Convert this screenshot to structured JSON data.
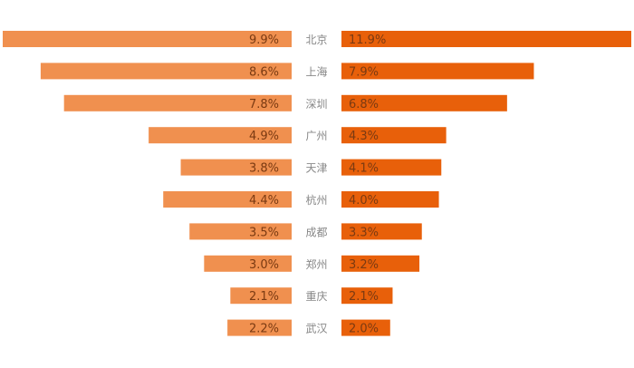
{
  "chart_data": {
    "type": "bar",
    "orientation": "horizontal-butterfly",
    "categories": [
      "北京",
      "上海",
      "深圳",
      "广州",
      "天津",
      "杭州",
      "成都",
      "郑州",
      "重庆",
      "武汉"
    ],
    "series": [
      {
        "key": "left",
        "values": [
          9.9,
          8.6,
          7.8,
          4.9,
          3.8,
          4.4,
          3.5,
          3.0,
          2.1,
          2.2
        ],
        "color": "#f0904f"
      },
      {
        "key": "right",
        "values": [
          11.9,
          7.9,
          6.8,
          4.3,
          4.1,
          4.0,
          3.3,
          3.2,
          2.1,
          2.0
        ],
        "color": "#e8600a"
      }
    ],
    "value_suffix": "%",
    "label_color": "#7a3a12",
    "category_color": "#888888",
    "grid": false,
    "legend": "none"
  }
}
